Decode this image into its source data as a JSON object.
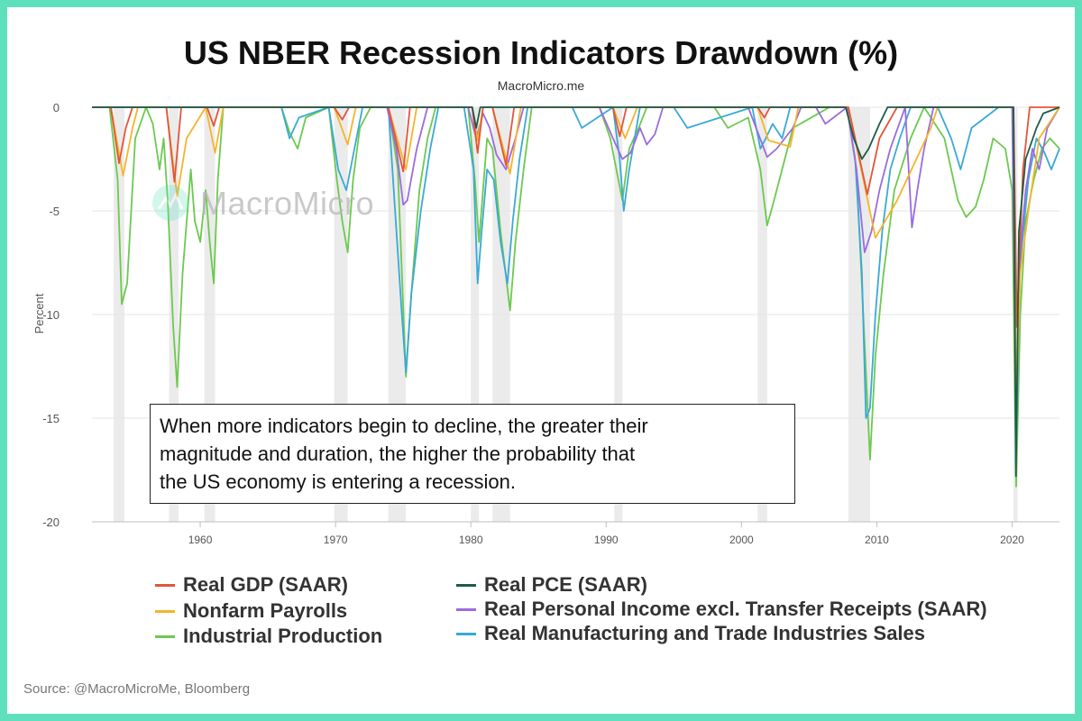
{
  "chart_data": {
    "type": "line",
    "title": "US NBER Recession Indicators Drawdown (%)",
    "subtitle": "MacroMicro.me",
    "ylabel": "Percent",
    "xlabel": "",
    "xlim": [
      1952,
      2023.5
    ],
    "ylim": [
      -20,
      0
    ],
    "x_ticks": [
      1960,
      1970,
      1980,
      1990,
      2000,
      2010,
      2020
    ],
    "y_ticks": [
      0,
      -5,
      -10,
      -15,
      -20
    ],
    "grid": true,
    "recession_periods": [
      [
        1953.6,
        1954.4
      ],
      [
        1957.7,
        1958.4
      ],
      [
        1960.3,
        1961.1
      ],
      [
        1969.9,
        1970.9
      ],
      [
        1973.9,
        1975.2
      ],
      [
        1980.0,
        1980.6
      ],
      [
        1981.6,
        1982.9
      ],
      [
        1990.6,
        1991.2
      ],
      [
        2001.2,
        2001.9
      ],
      [
        2007.9,
        2009.5
      ],
      [
        2020.1,
        2020.4
      ]
    ],
    "series": [
      {
        "name": "Real GDP (SAAR)",
        "color": "#e2553a",
        "x": [
          1952,
          1953.4,
          1954.0,
          1954.5,
          1955,
          1957.5,
          1958.1,
          1958.6,
          1960.5,
          1961.0,
          1961.4,
          1969.9,
          1970.5,
          1971.0,
          1973.9,
          1975.0,
          1975.5,
          1980.1,
          1980.5,
          1980.9,
          1981.6,
          1982.6,
          1983.2,
          1990.5,
          1991.0,
          1991.5,
          2001.2,
          2001.7,
          2002.1,
          2007.9,
          2009.3,
          2010.2,
          2011.5,
          2020.1,
          2020.35,
          2020.8,
          2021.3,
          2023.5
        ],
        "values": [
          0,
          0,
          -2.7,
          -1.0,
          0,
          0,
          -3.6,
          0,
          0,
          -0.9,
          0,
          0,
          -0.6,
          0,
          0,
          -3.1,
          0,
          0,
          -2.2,
          0,
          0,
          -2.8,
          0,
          0,
          -1.4,
          0,
          0,
          -0.5,
          0,
          0,
          -4.2,
          -1.5,
          0,
          0,
          -10.6,
          -3.0,
          0,
          0
        ]
      },
      {
        "name": "Nonfarm Payrolls",
        "color": "#f7b32b",
        "x": [
          1952,
          1953.4,
          1954.3,
          1955.0,
          1955.4,
          1957.5,
          1958.3,
          1959.0,
          1960.4,
          1961.1,
          1961.7,
          1969.9,
          1970.9,
          1971.5,
          1973.9,
          1975.2,
          1976.0,
          1980.1,
          1980.5,
          1980.9,
          1981.6,
          1982.9,
          1983.7,
          1990.5,
          1991.4,
          1992.3,
          2001.2,
          2002.0,
          2003.6,
          2004.2,
          2007.9,
          2009.9,
          2011.5,
          2014.0,
          2014.5,
          2020.1,
          2020.3,
          2020.6,
          2021.2,
          2022.0,
          2023.5
        ],
        "values": [
          0,
          0,
          -3.3,
          -1.0,
          0,
          0,
          -4.3,
          -1.5,
          0,
          -2.2,
          0,
          0,
          -1.8,
          0,
          0,
          -3.0,
          0,
          0,
          -1.6,
          0,
          0,
          -3.2,
          0,
          0,
          -1.5,
          0,
          0,
          -1.6,
          -1.9,
          0,
          0,
          -6.3,
          -4.5,
          -1.0,
          0,
          0,
          -14.5,
          -8.0,
          -5.0,
          -1.5,
          0
        ]
      },
      {
        "name": "Industrial Production",
        "color": "#6cc94f",
        "x": [
          1952,
          1953.3,
          1953.9,
          1954.2,
          1954.6,
          1955.2,
          1956,
          1956.5,
          1957,
          1957.3,
          1957.6,
          1958.0,
          1958.3,
          1958.7,
          1959.3,
          1959.6,
          1960,
          1960.4,
          1960.7,
          1961.0,
          1961.3,
          1961.7,
          1966,
          1966.6,
          1967.2,
          1967.8,
          1969.5,
          1970.1,
          1970.5,
          1970.9,
          1971.3,
          1971.8,
          1972.6,
          1973.9,
          1974.6,
          1975.2,
          1975.6,
          1976.2,
          1976.8,
          1977.4,
          1979.8,
          1980.3,
          1980.6,
          1980.9,
          1981.2,
          1981.6,
          1982.2,
          1982.9,
          1983.3,
          1983.9,
          1984.5,
          1989.5,
          1990.3,
          1990.9,
          1991.2,
          1991.7,
          1992.4,
          1993.0,
          1998.0,
          1999.0,
          2000.5,
          2001.4,
          2001.9,
          2002.4,
          2003.0,
          2003.8,
          2006.5,
          2007.8,
          2008.5,
          2009.0,
          2009.5,
          2009.9,
          2010.5,
          2011.3,
          2012.5,
          2013.5,
          2015.0,
          2015.5,
          2016.0,
          2016.6,
          2017.3,
          2017.9,
          2018.6,
          2019.5,
          2020.0,
          2020.3,
          2020.6,
          2021.0,
          2021.6,
          2022.2,
          2022.8,
          2023.5
        ],
        "values": [
          0,
          0,
          -3.5,
          -9.5,
          -8.5,
          -1.5,
          0,
          -0.8,
          -3.0,
          -1.5,
          -4.5,
          -10.5,
          -13.5,
          -8.0,
          -3.0,
          -5.5,
          -6.5,
          -4.0,
          -6.5,
          -8.5,
          -3.5,
          0,
          0,
          -1.2,
          -2.0,
          -0.5,
          0,
          -3.5,
          -5.5,
          -7.0,
          -3.5,
          -1.0,
          0,
          0,
          -3.0,
          -13.0,
          -9.0,
          -4.0,
          -1.5,
          0,
          0,
          -3.5,
          -6.5,
          -4.0,
          -1.5,
          -2.0,
          -6.0,
          -9.8,
          -6.5,
          -3.0,
          0,
          0,
          -1.5,
          -3.5,
          -4.5,
          -2.0,
          -1.0,
          0,
          0,
          -1.0,
          -0.5,
          -3.0,
          -5.7,
          -4.5,
          -3.0,
          -1.0,
          0,
          0,
          -3.0,
          -10.0,
          -17.0,
          -12.0,
          -8.0,
          -4.0,
          -1.5,
          0,
          -1.5,
          -3.0,
          -4.5,
          -5.3,
          -4.8,
          -3.5,
          -1.5,
          -2.0,
          -4.0,
          -18.3,
          -10.0,
          -5.5,
          -3.5,
          -2.0,
          -1.5,
          -2.0
        ]
      },
      {
        "name": "Real PCE (SAAR)",
        "color": "#1d5c47",
        "x": [
          1952,
          1980.1,
          1980.4,
          1980.7,
          2007.7,
          2008.3,
          2008.9,
          2009.4,
          2010.2,
          2010.8,
          2020.1,
          2020.28,
          2020.5,
          2021.0,
          2021.8,
          2022.3,
          2023.5
        ],
        "values": [
          0,
          0,
          -1.0,
          0,
          0,
          -1.5,
          -2.5,
          -2.0,
          -0.8,
          0,
          0,
          -17.8,
          -6.0,
          -2.5,
          -1.0,
          -0.3,
          0
        ]
      },
      {
        "name": "Real Personal Income excl. Transfer Receipts (SAAR)",
        "color": "#9b6be0",
        "x": [
          1952,
          1973.8,
          1974.5,
          1975.0,
          1975.3,
          1976.0,
          1976.8,
          1979.8,
          1980.4,
          1980.9,
          1981.4,
          1981.9,
          1982.6,
          1983.3,
          1983.9,
          1989.5,
          1990.5,
          1991.2,
          1991.8,
          1992.5,
          1993.0,
          1993.6,
          1994.2,
          2000.5,
          2001.2,
          2001.9,
          2002.6,
          2003.2,
          2003.8,
          2004.4,
          2005.5,
          2006.2,
          2007.8,
          2008.5,
          2009.1,
          2009.6,
          2010.2,
          2011.0,
          2012.1,
          2012.6,
          2013.0,
          2013.5,
          2014.2,
          2015.0,
          2020.0,
          2020.3,
          2020.6,
          2021.0,
          2021.5,
          2022.0,
          2022.6,
          2023.5
        ],
        "values": [
          0,
          0,
          -2.0,
          -4.7,
          -4.5,
          -2.0,
          0,
          0,
          -1.5,
          -0.3,
          -1.0,
          -2.3,
          -3.0,
          -1.5,
          0,
          0,
          -1.5,
          -2.5,
          -2.2,
          -1.0,
          -1.8,
          -1.3,
          0,
          0,
          -1.2,
          -2.4,
          -2.0,
          -1.5,
          -1.0,
          0,
          0,
          -0.8,
          0,
          -3.0,
          -7.0,
          -6.0,
          -4.0,
          -2.0,
          0,
          -5.8,
          -4.0,
          -2.0,
          0,
          0,
          0,
          -15.0,
          -7.0,
          -4.0,
          -2.0,
          -3.0,
          -1.0,
          0
        ]
      },
      {
        "name": "Real Manufacturing and Trade Industries Sales",
        "color": "#3aa9d6",
        "x": [
          1952,
          1966,
          1966.6,
          1967.3,
          1969.5,
          1970.2,
          1970.8,
          1971.4,
          1972.0,
          1973.9,
          1974.4,
          1974.9,
          1975.2,
          1975.6,
          1976.3,
          1977.0,
          1977.6,
          1979.5,
          1980.2,
          1980.5,
          1980.8,
          1981.2,
          1981.7,
          1982.2,
          1982.7,
          1983.1,
          1983.6,
          1984.2,
          1987.5,
          1988.2,
          1990.5,
          1991.0,
          1991.3,
          1991.7,
          1992.5,
          1995.0,
          1996.0,
          2000.8,
          2001.4,
          2001.8,
          2002.3,
          2003.0,
          2003.6,
          2006.5,
          2007.8,
          2008.4,
          2008.9,
          2009.2,
          2009.5,
          2009.9,
          2010.4,
          2011.0,
          2011.7,
          2012.5,
          2014.5,
          2015.5,
          2016.2,
          2017.0,
          2019.0,
          2020.1,
          2020.3,
          2020.6,
          2021.2,
          2021.8,
          2022.4,
          2022.9,
          2023.5
        ],
        "values": [
          0,
          0,
          -1.5,
          -0.5,
          0,
          -3.0,
          -4.0,
          -2.0,
          0,
          0,
          -5.0,
          -10.0,
          -12.8,
          -9.0,
          -5.0,
          -2.0,
          0,
          0,
          -3.0,
          -8.5,
          -6.0,
          -3.0,
          -3.5,
          -6.5,
          -8.5,
          -5.5,
          -2.5,
          0,
          0,
          -1.0,
          0,
          -2.5,
          -5.0,
          -3.0,
          0,
          0,
          -1.0,
          0,
          -2.0,
          -1.5,
          -0.8,
          -1.5,
          0,
          0,
          0,
          -2.5,
          -8.0,
          -15.0,
          -14.5,
          -10.0,
          -6.0,
          -3.0,
          -1.5,
          0,
          0,
          -1.5,
          -3.0,
          -1.0,
          0,
          0,
          -16.5,
          -7.5,
          -3.5,
          -1.5,
          -2.2,
          -3.0,
          -2.0
        ]
      }
    ]
  },
  "annotation": {
    "line1": "When more indicators begin to decline, the greater their",
    "line2": "magnitude and duration, the higher the probability that",
    "line3": "the US economy is entering a recession."
  },
  "watermark": "MacroMicro",
  "source": "Source: @MacroMicroMe, Bloomberg",
  "frame_color": "#5fe0bd"
}
